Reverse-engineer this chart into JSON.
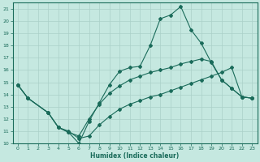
{
  "xlabel": "Humidex (Indice chaleur)",
  "bg_color": "#c5e8e0",
  "line_color": "#1a6b5a",
  "grid_color": "#aad0c8",
  "xlim": [
    -0.5,
    23.5
  ],
  "ylim": [
    10,
    21.5
  ],
  "xticks": [
    0,
    1,
    2,
    3,
    4,
    5,
    6,
    7,
    8,
    9,
    10,
    11,
    12,
    13,
    14,
    15,
    16,
    17,
    18,
    19,
    20,
    21,
    22,
    23
  ],
  "yticks": [
    10,
    11,
    12,
    13,
    14,
    15,
    16,
    17,
    18,
    19,
    20,
    21
  ],
  "lines": [
    {
      "x": [
        0,
        1,
        3,
        4,
        5,
        6,
        7,
        8,
        9,
        10,
        11,
        12,
        13,
        14,
        15,
        16,
        17,
        18,
        19,
        20,
        21,
        22,
        23
      ],
      "y": [
        14.8,
        13.7,
        12.5,
        11.3,
        10.9,
        10.0,
        11.8,
        13.3,
        14.8,
        15.9,
        16.2,
        16.3,
        18.0,
        20.2,
        20.5,
        21.2,
        19.3,
        18.2,
        16.6,
        15.2,
        14.5,
        13.8,
        13.7
      ]
    },
    {
      "x": [
        0,
        1,
        3,
        4,
        5,
        6,
        7,
        8,
        9,
        10,
        11,
        12,
        13,
        14,
        15,
        16,
        17,
        18,
        19,
        20,
        21,
        22,
        23
      ],
      "y": [
        14.8,
        13.7,
        12.5,
        11.3,
        10.9,
        10.6,
        12.0,
        13.2,
        14.1,
        14.7,
        15.2,
        15.5,
        15.8,
        16.0,
        16.2,
        16.5,
        16.7,
        16.9,
        16.7,
        15.2,
        14.5,
        13.8,
        13.7
      ]
    },
    {
      "x": [
        0,
        1,
        3,
        4,
        5,
        6,
        7,
        8,
        9,
        10,
        11,
        12,
        13,
        14,
        15,
        16,
        17,
        18,
        19,
        20,
        21,
        22,
        23
      ],
      "y": [
        14.8,
        13.7,
        12.5,
        11.3,
        11.0,
        10.4,
        10.6,
        11.5,
        12.2,
        12.8,
        13.2,
        13.5,
        13.8,
        14.0,
        14.3,
        14.6,
        14.9,
        15.2,
        15.5,
        15.8,
        16.2,
        13.8,
        13.7
      ]
    }
  ]
}
